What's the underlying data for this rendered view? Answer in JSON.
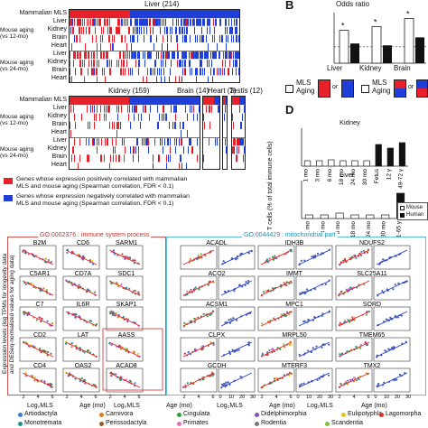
{
  "panel_A": {
    "clusters": [
      "Liver (214)",
      "Kidney (159)",
      "Brain (14)",
      "Heart (2)",
      "Testis (12)"
    ],
    "row_labels": [
      "Mammalian MLS",
      "Liver",
      "Kidney",
      "Brain",
      "Heart",
      "Liver",
      "Kidney",
      "Brain",
      "Heart"
    ],
    "row_groups": [
      "Mouse aging (vs 12-mo)",
      "Mouse aging (vs 24-mo)"
    ],
    "legend": [
      {
        "color": "#e8202a",
        "text_1": "Genes whose expression positively correlated with mammalian",
        "text_2": "MLS and mouse aging (Spearman correlation, FDR < 0.1)"
      },
      {
        "color": "#1f3fd8",
        "text_1": "Genes whose expression negatively correlated with mammalian",
        "text_2": "MLS and mouse aging (Spearman correlation, FDR < 0.1)"
      }
    ]
  },
  "panel_B": {
    "letter": "B",
    "title": "Odds ratio",
    "categories": [
      "Liver",
      "Kidney",
      "Brain"
    ],
    "legend_mls": "MLS",
    "legend_aging": "Aging",
    "legend_or": "or",
    "star": "*"
  },
  "panel_D": {
    "letter": "D",
    "ylabel": "T cells (% of total immune cells)",
    "kidney_title": "Kidney",
    "liver_title": "Liver",
    "kidney_labels": [
      "1 mo",
      "3 mo",
      "6 mo",
      "18 mo",
      "24 mo",
      "30 mo",
      "Fetus",
      "12 y",
      "49-72 y"
    ],
    "liver_labels": [
      "1 mo",
      "3 mo",
      "6 mo",
      "18 mo",
      "24 mo",
      "30 mo",
      "21-65 y"
    ],
    "legend": [
      "Mouse",
      "Human"
    ]
  },
  "panel_C": {
    "go_immune": "GO:0002376 : immune system process",
    "go_mito": "GO:0044429 : mitochondrial part",
    "ylabel_1": "Expression levels (log TPMs for longevity data",
    "ylabel_2": "and DESeq-normalized values for aging data)",
    "x_mls": "Log₂MLS",
    "x_age": "Age (mo)",
    "immune_genes": [
      "B2M",
      "CD6",
      "SARM1",
      "C5AR1",
      "CD7A",
      "SDC1",
      "C7",
      "IL6R",
      "SKAP1",
      "CD2",
      "LAT",
      "AASS",
      "CD4",
      "OAS2",
      "ACAD8"
    ],
    "mito_genes": [
      "ACADL",
      "IDH3B",
      "NDUFS2",
      "ACO2",
      "IMMT",
      "SLC25A11",
      "ACSM1",
      "MPC1",
      "SORD",
      "CLPX",
      "MRPL50",
      "TMEM65",
      "GCDH",
      "MTERF3",
      "TMX2"
    ],
    "x_ticks_mls": [
      "2",
      "4",
      "6"
    ],
    "x_ticks_age": [
      "0",
      "10",
      "20",
      "30"
    ]
  },
  "species_legend": [
    {
      "name": "Artiodactyla",
      "color": "#3a7bd5"
    },
    {
      "name": "Carnivora",
      "color": "#e07a1f"
    },
    {
      "name": "Cingulata",
      "color": "#2e9e3e"
    },
    {
      "name": "Didelphimorphia",
      "color": "#8a4cc2"
    },
    {
      "name": "Eulipotyphla",
      "color": "#e5c21a"
    },
    {
      "name": "Lagomorpha",
      "color": "#d83030"
    },
    {
      "name": "Monotremata",
      "color": "#1f8f8f"
    },
    {
      "name": "Perissodactyla",
      "color": "#9a5b2a"
    },
    {
      "name": "Primates",
      "color": "#e76fb4"
    },
    {
      "name": "Rodentia",
      "color": "#777777"
    },
    {
      "name": "Scandentia",
      "color": "#7fc241"
    }
  ],
  "colors": {
    "positive": "#e8202a",
    "negative": "#1f3fd8",
    "immune_box": "#d9534f",
    "mito_box": "#5bc0de"
  }
}
